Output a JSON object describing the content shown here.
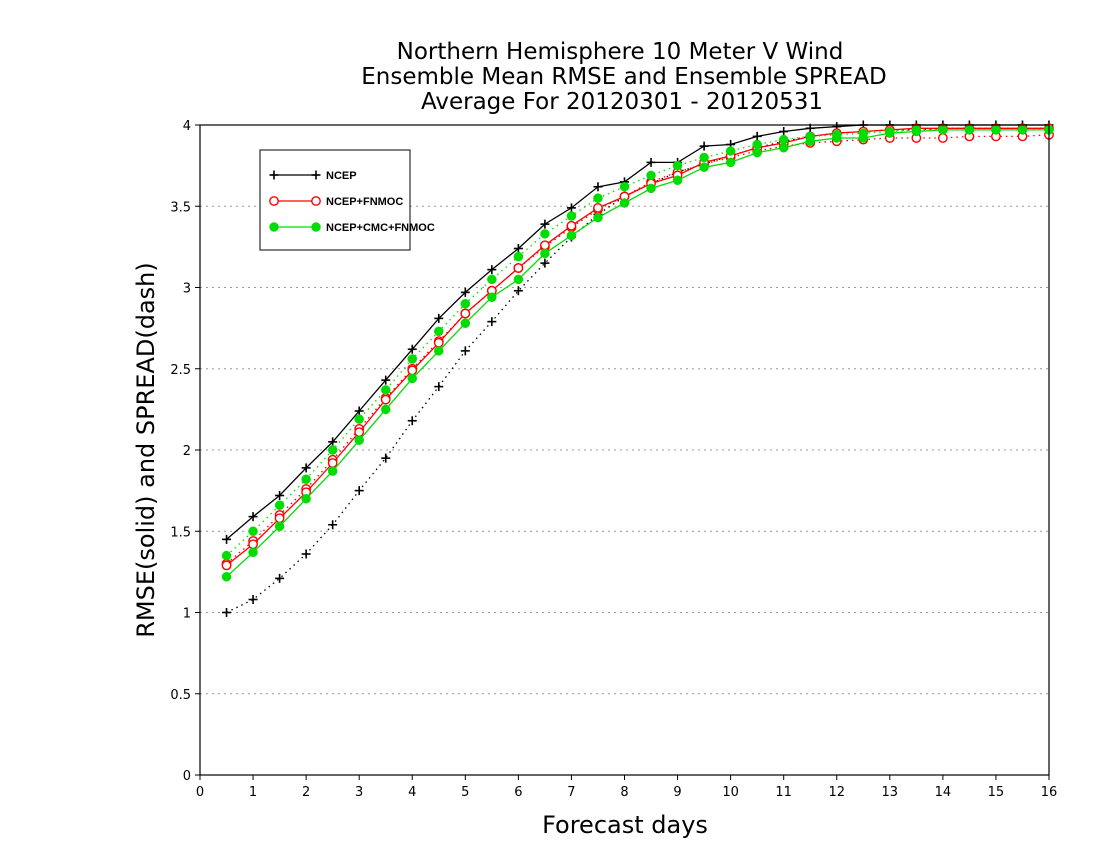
{
  "chart_data": {
    "type": "line",
    "title": [
      "Northern Hemisphere 10 Meter V Wind",
      "Ensemble Mean RMSE and Ensemble SPREAD",
      "Average For 20120301 - 20120531"
    ],
    "xlabel": "Forecast days",
    "ylabel": "RMSE(solid) and SPREAD(dash)",
    "xlim": [
      0,
      16
    ],
    "ylim": [
      0,
      4
    ],
    "xticks": [
      "0",
      "1",
      "2",
      "3",
      "4",
      "5",
      "6",
      "7",
      "8",
      "9",
      "10",
      "11",
      "12",
      "13",
      "14",
      "15",
      "16"
    ],
    "yticks": [
      "0",
      "0.5",
      "1",
      "1.5",
      "2",
      "2.5",
      "3",
      "3.5",
      "4"
    ],
    "grid": true,
    "legend_position": "top-left",
    "x": [
      0.5,
      1,
      1.5,
      2,
      2.5,
      3,
      3.5,
      4,
      4.5,
      5,
      5.5,
      6,
      6.5,
      7,
      7.5,
      8,
      8.5,
      9,
      9.5,
      10,
      10.5,
      11,
      11.5,
      12,
      12.5,
      13,
      13.5,
      14,
      14.5,
      15,
      15.5,
      16
    ],
    "series": [
      {
        "name": "NCEP",
        "color": "#000000",
        "marker": "plus",
        "rmse": [
          1.45,
          1.59,
          1.72,
          1.89,
          2.05,
          2.24,
          2.43,
          2.62,
          2.81,
          2.97,
          3.11,
          3.24,
          3.39,
          3.49,
          3.62,
          3.65,
          3.77,
          3.77,
          3.87,
          3.88,
          3.93,
          3.96,
          3.98,
          3.99,
          4.0,
          4.0,
          4.0,
          4.0,
          4.0,
          4.0,
          4.0,
          4.0
        ],
        "spread": [
          1.0,
          1.08,
          1.21,
          1.36,
          1.54,
          1.75,
          1.95,
          2.18,
          2.39,
          2.61,
          2.79,
          2.98,
          3.15,
          3.31,
          3.45,
          3.56,
          3.64,
          3.71,
          3.76,
          3.81,
          3.86,
          3.9,
          3.93,
          3.95,
          3.96,
          3.97,
          3.97,
          3.98,
          3.98,
          3.98,
          3.98,
          3.98
        ]
      },
      {
        "name": "NCEP+FNMOC",
        "color": "#ff0000",
        "marker": "open-circle",
        "rmse": [
          1.29,
          1.42,
          1.58,
          1.74,
          1.92,
          2.11,
          2.31,
          2.49,
          2.66,
          2.84,
          2.98,
          3.12,
          3.26,
          3.38,
          3.49,
          3.56,
          3.64,
          3.69,
          3.77,
          3.81,
          3.86,
          3.89,
          3.93,
          3.95,
          3.96,
          3.97,
          3.98,
          3.98,
          3.98,
          3.98,
          3.98,
          3.98
        ],
        "spread": [
          1.3,
          1.44,
          1.6,
          1.76,
          1.94,
          2.13,
          2.32,
          2.5,
          2.67,
          2.84,
          2.98,
          3.12,
          3.25,
          3.37,
          3.48,
          3.56,
          3.65,
          3.71,
          3.76,
          3.8,
          3.84,
          3.87,
          3.89,
          3.9,
          3.91,
          3.92,
          3.92,
          3.92,
          3.93,
          3.93,
          3.93,
          3.94
        ]
      },
      {
        "name": "NCEP+CMC+FNMOC",
        "color": "#00dd00",
        "marker": "filled-circle",
        "rmse": [
          1.22,
          1.37,
          1.53,
          1.7,
          1.87,
          2.06,
          2.25,
          2.44,
          2.61,
          2.78,
          2.94,
          3.05,
          3.21,
          3.32,
          3.43,
          3.52,
          3.61,
          3.66,
          3.74,
          3.77,
          3.83,
          3.86,
          3.9,
          3.92,
          3.92,
          3.95,
          3.96,
          3.97,
          3.97,
          3.97,
          3.97,
          3.97
        ],
        "spread": [
          1.35,
          1.5,
          1.66,
          1.82,
          2.0,
          2.19,
          2.37,
          2.56,
          2.73,
          2.9,
          3.05,
          3.19,
          3.33,
          3.44,
          3.55,
          3.62,
          3.69,
          3.75,
          3.8,
          3.84,
          3.88,
          3.91,
          3.93,
          3.94,
          3.95,
          3.96,
          3.97,
          3.97,
          3.97,
          3.97,
          3.97,
          3.97
        ]
      }
    ]
  }
}
